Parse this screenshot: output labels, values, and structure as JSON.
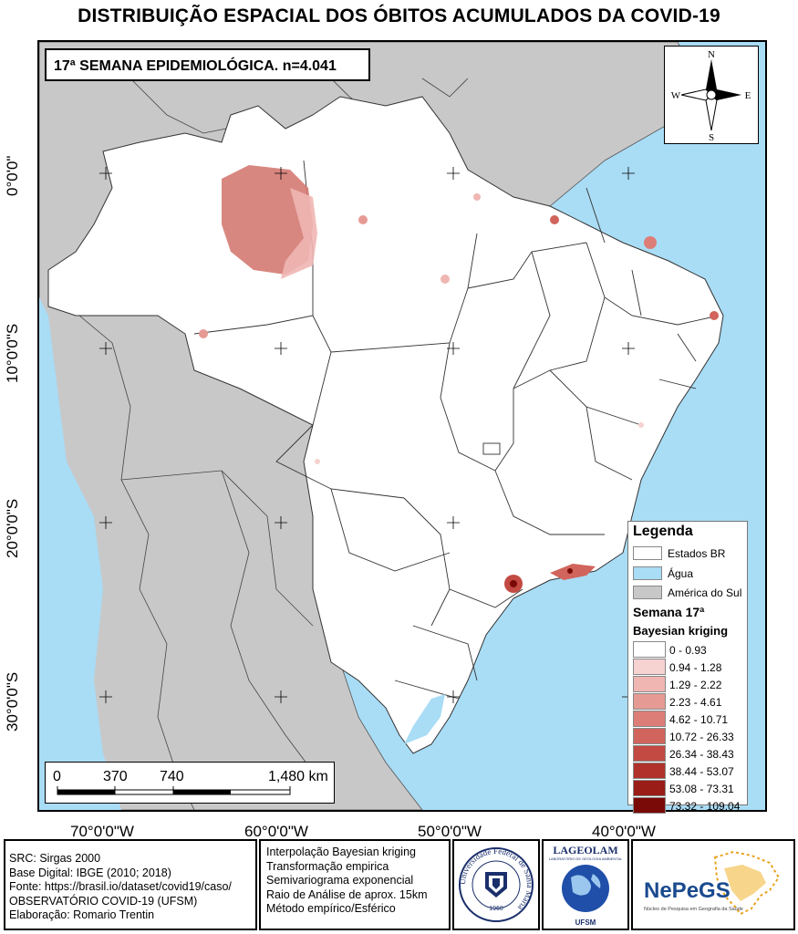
{
  "title": "DISTRIBUIÇÃO ESPACIAL DOS ÓBITOS ACUMULADOS DA COVID-19",
  "week_label": "17ª SEMANA EPIDEMIOLÓGICA. n=4.041",
  "north_arrow": {
    "n": "N",
    "s": "S",
    "e": "E",
    "w": "W"
  },
  "lat_labels": [
    "0°0'0\"",
    "10°0'0\"S",
    "20°0'0\"S",
    "30°0'0\"S"
  ],
  "lon_labels": [
    "70°0'0\"W",
    "60°0'0\"W",
    "50°0'0\"W",
    "40°0'0\"W"
  ],
  "scale": {
    "ticks": [
      "0",
      "370",
      "740",
      "1,480 km"
    ]
  },
  "legend": {
    "title": "Legenda",
    "items": [
      {
        "label": "Estados BR",
        "color": "#ffffff"
      },
      {
        "label": "Água",
        "color": "#a9dcf5"
      },
      {
        "label": "América do Sul",
        "color": "#c8c8c8"
      }
    ],
    "subtitle": "Semana 17ª",
    "method": "Bayesian kriging",
    "classes": [
      {
        "label": "0 - 0.93",
        "color": "#ffffff"
      },
      {
        "label": "0.94 - 1.28",
        "color": "#f6d2d0"
      },
      {
        "label": "1.29 - 2.22",
        "color": "#efb6b2"
      },
      {
        "label": "2.23 - 4.61",
        "color": "#e69a94"
      },
      {
        "label": "4.62 - 10.71",
        "color": "#dc7e77"
      },
      {
        "label": "10.72 - 26.33",
        "color": "#d1645c"
      },
      {
        "label": "26.34 - 38.43",
        "color": "#c24a42"
      },
      {
        "label": "38.44 - 53.07",
        "color": "#b0322b"
      },
      {
        "label": "53.08 - 73.31",
        "color": "#9a1d17"
      },
      {
        "label": "73.32 - 109.04",
        "color": "#7a0a07"
      }
    ]
  },
  "credits": [
    "SRC: Sirgas 2000",
    "Base Digital: IBGE (2010; 2018)",
    "Fonte: https://brasil.io/dataset/covid19/caso/",
    "OBSERVATÓRIO COVID-19 (UFSM)",
    "Elaboração: Romario Trentin"
  ],
  "method_notes": [
    "Interpolação Bayesian kriging",
    "Transformação empirica",
    "Semivariograma exponencial",
    "Raio de Análise de aprox. 15km",
    "Método empírico/Esférico"
  ],
  "logos": {
    "ufsm_ring": "Universidade Federal de Santa Maria",
    "ufsm_year": "1960",
    "lageolam": "LAGEOLAM",
    "lageolam_sub": "LABORATÓRIO DE GEOLOGIA AMBIENTAL",
    "lageolam_bottom": "UFSM",
    "nepegs": "NePeGS",
    "nepegs_sub": "Núcleo de Pesquisa em Geografia da Saúde"
  }
}
